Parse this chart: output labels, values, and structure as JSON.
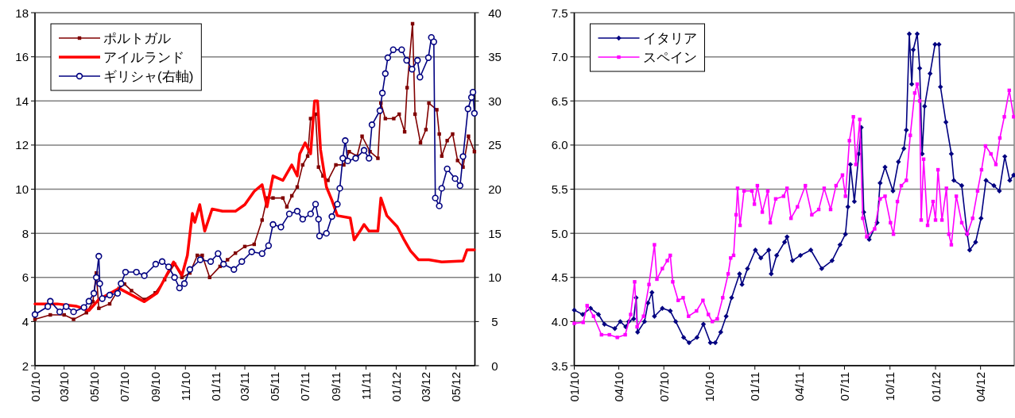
{
  "chart_data": [
    {
      "type": "line",
      "xlim": [
        "2010-01-01",
        "2012-06-08"
      ],
      "ylim": [
        2,
        18
      ],
      "yticks": [
        2,
        4,
        6,
        8,
        10,
        12,
        14,
        16,
        18
      ],
      "y2lim": [
        0,
        40
      ],
      "y2ticks": [
        0,
        5,
        10,
        15,
        20,
        25,
        30,
        35,
        40
      ],
      "xticks": [
        {
          "value": "2010-01-01",
          "label": "01/10"
        },
        {
          "value": "2010-03-01",
          "label": "03/10"
        },
        {
          "value": "2010-05-01",
          "label": "05/10"
        },
        {
          "value": "2010-07-01",
          "label": "07/10"
        },
        {
          "value": "2010-09-01",
          "label": "09/10"
        },
        {
          "value": "2010-11-01",
          "label": "11/10"
        },
        {
          "value": "2011-01-01",
          "label": "01/11"
        },
        {
          "value": "2011-03-01",
          "label": "03/11"
        },
        {
          "value": "2011-05-01",
          "label": "05/11"
        },
        {
          "value": "2011-07-01",
          "label": "07/11"
        },
        {
          "value": "2011-09-01",
          "label": "09/11"
        },
        {
          "value": "2011-11-01",
          "label": "11/11"
        },
        {
          "value": "2012-01-01",
          "label": "01/12"
        },
        {
          "value": "2012-03-01",
          "label": "03/12"
        },
        {
          "value": "2012-05-01",
          "label": "05/12"
        }
      ],
      "grid": "y",
      "legend": "top left",
      "line_style": "solid",
      "series": [
        {
          "name": "ポルトガル",
          "color": "#800000",
          "marker": "square",
          "x": [
            "2010-01-01",
            "2010-02-01",
            "2010-03-01",
            "2010-03-20",
            "2010-04-15",
            "2010-04-28",
            "2010-05-05",
            "2010-05-10",
            "2010-06-01",
            "2010-06-20",
            "2010-07-01",
            "2010-07-15",
            "2010-08-10",
            "2010-09-01",
            "2010-09-20",
            "2010-10-10",
            "2010-10-25",
            "2010-11-10",
            "2010-11-25",
            "2010-12-05",
            "2010-12-20",
            "2011-01-10",
            "2011-01-25",
            "2011-02-10",
            "2011-03-01",
            "2011-03-20",
            "2011-04-05",
            "2011-04-15",
            "2011-04-27",
            "2011-05-17",
            "2011-05-25",
            "2011-06-04",
            "2011-06-15",
            "2011-06-26",
            "2011-07-06",
            "2011-07-12",
            "2011-07-22",
            "2011-07-28",
            "2011-08-06",
            "2011-08-16",
            "2011-09-01",
            "2011-09-17",
            "2011-09-28",
            "2011-10-14",
            "2011-10-24",
            "2011-11-09",
            "2011-11-25",
            "2011-12-01",
            "2011-12-10",
            "2011-12-27",
            "2012-01-07",
            "2012-01-18",
            "2012-01-23",
            "2012-02-03",
            "2012-02-08",
            "2012-02-19",
            "2012-03-01",
            "2012-03-07",
            "2012-03-23",
            "2012-03-28",
            "2012-04-02",
            "2012-04-13",
            "2012-04-24",
            "2012-05-04",
            "2012-05-15",
            "2012-05-26",
            "2012-06-07"
          ],
          "values": [
            4.1,
            4.3,
            4.3,
            4.1,
            4.4,
            4.9,
            6.2,
            4.6,
            4.8,
            5.5,
            5.7,
            5.4,
            5.0,
            5.3,
            5.9,
            6.6,
            6.0,
            6.2,
            7.0,
            7.0,
            6.0,
            6.5,
            6.8,
            7.1,
            7.4,
            7.5,
            8.6,
            9.6,
            9.6,
            9.6,
            9.2,
            9.7,
            10.1,
            11.1,
            11.5,
            13.2,
            13.4,
            11.0,
            10.6,
            10.4,
            11.1,
            11.1,
            11.7,
            11.5,
            12.4,
            11.7,
            11.4,
            13.9,
            13.2,
            13.2,
            13.4,
            12.6,
            14.6,
            17.5,
            13.4,
            12.1,
            12.7,
            13.9,
            13.6,
            12.5,
            11.5,
            12.2,
            12.5,
            11.3,
            11.0,
            12.4,
            11.7
          ]
        },
        {
          "name": "アイルランド",
          "color": "#ff0000",
          "marker": "none",
          "x": [
            "2010-01-01",
            "2010-02-15",
            "2010-03-25",
            "2010-04-20",
            "2010-05-10",
            "2010-06-20",
            "2010-08-10",
            "2010-09-05",
            "2010-10-08",
            "2010-10-25",
            "2010-11-05",
            "2010-11-15",
            "2010-11-20",
            "2010-11-30",
            "2010-12-10",
            "2010-12-25",
            "2011-01-15",
            "2011-02-10",
            "2011-03-01",
            "2011-03-20",
            "2011-04-05",
            "2011-04-15",
            "2011-04-27",
            "2011-05-17",
            "2011-06-04",
            "2011-06-15",
            "2011-06-20",
            "2011-07-01",
            "2011-07-12",
            "2011-07-20",
            "2011-07-26",
            "2011-08-01",
            "2011-08-08",
            "2011-08-13",
            "2011-08-24",
            "2011-09-04",
            "2011-09-30",
            "2011-10-08",
            "2011-10-20",
            "2011-10-28",
            "2011-11-07",
            "2011-11-25",
            "2011-12-01",
            "2011-12-13",
            "2012-01-03",
            "2012-01-17",
            "2012-01-30",
            "2012-02-15",
            "2012-03-07",
            "2012-04-02",
            "2012-05-15",
            "2012-05-23",
            "2012-06-07"
          ],
          "values": [
            4.8,
            4.8,
            4.7,
            4.5,
            5.0,
            5.5,
            4.9,
            5.3,
            6.7,
            6.1,
            7.0,
            8.9,
            8.5,
            9.3,
            8.1,
            9.1,
            9.0,
            9.0,
            9.3,
            9.9,
            10.2,
            9.2,
            10.6,
            10.4,
            11.1,
            10.6,
            11.6,
            12.1,
            11.6,
            14.0,
            14.0,
            11.8,
            10.8,
            10.1,
            9.5,
            8.8,
            8.7,
            7.7,
            8.1,
            8.4,
            8.1,
            8.1,
            9.6,
            8.8,
            8.3,
            7.7,
            7.2,
            6.8,
            6.8,
            6.7,
            6.75,
            7.25,
            7.25
          ]
        },
        {
          "name": "ギリシャ(右軸)",
          "color": "#000080",
          "marker": "circle",
          "axis": "y2",
          "x": [
            "2010-01-01",
            "2010-01-27",
            "2010-02-01",
            "2010-02-20",
            "2010-03-05",
            "2010-03-20",
            "2010-04-10",
            "2010-04-20",
            "2010-04-30",
            "2010-05-05",
            "2010-05-10",
            "2010-05-12",
            "2010-05-17",
            "2010-06-01",
            "2010-06-17",
            "2010-06-24",
            "2010-07-03",
            "2010-07-25",
            "2010-08-10",
            "2010-09-02",
            "2010-09-15",
            "2010-09-28",
            "2010-10-10",
            "2010-10-20",
            "2010-10-30",
            "2010-11-10",
            "2010-12-01",
            "2010-12-22",
            "2011-01-06",
            "2011-01-17",
            "2011-02-07",
            "2011-02-23",
            "2011-03-15",
            "2011-04-05",
            "2011-04-18",
            "2011-04-27",
            "2011-05-13",
            "2011-05-30",
            "2011-06-15",
            "2011-06-26",
            "2011-07-12",
            "2011-07-22",
            "2011-07-28",
            "2011-07-30",
            "2011-08-13",
            "2011-08-24",
            "2011-09-04",
            "2011-09-09",
            "2011-09-15",
            "2011-09-20",
            "2011-09-25",
            "2011-10-11",
            "2011-10-28",
            "2011-11-07",
            "2011-11-13",
            "2011-11-29",
            "2011-12-04",
            "2011-12-10",
            "2011-12-15",
            "2011-12-26",
            "2012-01-12",
            "2012-01-22",
            "2012-02-02",
            "2012-02-13",
            "2012-02-18",
            "2012-03-06",
            "2012-03-12",
            "2012-03-17",
            "2012-03-20",
            "2012-03-28",
            "2012-04-02",
            "2012-04-13",
            "2012-04-29",
            "2012-05-09",
            "2012-05-15",
            "2012-05-25",
            "2012-06-01",
            "2012-06-04",
            "2012-06-07"
          ],
          "values": [
            5.8,
            6.7,
            7.3,
            6.1,
            6.7,
            6.1,
            6.6,
            7.3,
            8.2,
            10.0,
            12.4,
            9.3,
            7.6,
            8.0,
            8.2,
            9.3,
            10.6,
            10.6,
            10.2,
            11.5,
            11.8,
            11.2,
            10.0,
            8.8,
            9.3,
            10.9,
            12.0,
            11.8,
            12.7,
            11.5,
            10.9,
            11.8,
            12.9,
            12.7,
            13.6,
            16.0,
            15.7,
            17.2,
            17.5,
            16.6,
            17.2,
            18.3,
            16.6,
            14.7,
            15.0,
            16.9,
            18.3,
            20.1,
            23.5,
            25.5,
            23.2,
            23.5,
            24.4,
            23.5,
            27.3,
            28.9,
            30.9,
            33.1,
            34.9,
            35.8,
            35.8,
            34.6,
            33.6,
            34.6,
            32.7,
            34.9,
            37.2,
            36.7,
            19.0,
            18.1,
            20.1,
            22.3,
            21.2,
            20.4,
            23.7,
            29.1,
            30.4,
            31.0,
            28.6
          ]
        }
      ]
    },
    {
      "type": "line",
      "xlim": [
        "2010-01-01",
        "2012-06-08"
      ],
      "ylim": [
        3.5,
        7.5
      ],
      "yticks": [
        {
          "value": 3.5,
          "label": "3.5"
        },
        {
          "value": 4,
          "label": "4.0"
        },
        {
          "value": 4.5,
          "label": "4.5"
        },
        {
          "value": 5,
          "label": "5.0"
        },
        {
          "value": 5.5,
          "label": "5.5"
        },
        {
          "value": 6,
          "label": "6.0"
        },
        {
          "value": 6.5,
          "label": "6.5"
        },
        {
          "value": 7,
          "label": "7.0"
        },
        {
          "value": 7.5,
          "label": "7.5"
        }
      ],
      "xticks": [
        {
          "value": "2010-01-01",
          "label": "01/10"
        },
        {
          "value": "2010-04-01",
          "label": "04/10"
        },
        {
          "value": "2010-07-01",
          "label": "07/10"
        },
        {
          "value": "2010-10-01",
          "label": "10/10"
        },
        {
          "value": "2011-01-01",
          "label": "01/11"
        },
        {
          "value": "2011-04-01",
          "label": "04/11"
        },
        {
          "value": "2011-07-01",
          "label": "07/11"
        },
        {
          "value": "2011-10-01",
          "label": "10/11"
        },
        {
          "value": "2012-01-01",
          "label": "01/12"
        },
        {
          "value": "2012-04-01",
          "label": "04/12"
        }
      ],
      "grid": "y",
      "legend": "top left",
      "line_style": "solid",
      "series": [
        {
          "name": "イタリア",
          "color": "#000080",
          "marker": "diamond",
          "x": [
            "2010-01-01",
            "2010-01-18",
            "2010-02-03",
            "2010-02-19",
            "2010-03-03",
            "2010-03-24",
            "2010-04-04",
            "2010-04-15",
            "2010-04-21",
            "2010-05-01",
            "2010-05-06",
            "2010-05-09",
            "2010-05-23",
            "2010-05-30",
            "2010-06-07",
            "2010-06-12",
            "2010-06-28",
            "2010-07-14",
            "2010-07-25",
            "2010-08-10",
            "2010-08-21",
            "2010-09-06",
            "2010-09-19",
            "2010-10-03",
            "2010-10-13",
            "2010-10-24",
            "2010-11-04",
            "2010-11-15",
            "2010-12-01",
            "2010-12-06",
            "2010-12-17",
            "2011-01-02",
            "2011-01-13",
            "2011-01-29",
            "2011-02-03",
            "2011-02-14",
            "2011-03-02",
            "2011-03-07",
            "2011-03-18",
            "2011-04-03",
            "2011-04-24",
            "2011-05-16",
            "2011-06-06",
            "2011-06-22",
            "2011-07-03",
            "2011-07-08",
            "2011-07-13",
            "2011-07-21",
            "2011-07-30",
            "2011-08-04",
            "2011-08-09",
            "2011-08-20",
            "2011-09-05",
            "2011-09-11",
            "2011-09-21",
            "2011-10-07",
            "2011-10-18",
            "2011-10-29",
            "2011-11-03",
            "2011-11-09",
            "2011-11-14",
            "2011-11-17",
            "2011-11-25",
            "2011-11-30",
            "2011-12-05",
            "2011-12-10",
            "2011-12-21",
            "2011-12-31",
            "2012-01-08",
            "2012-01-11",
            "2012-01-22",
            "2012-02-02",
            "2012-02-07",
            "2012-02-23",
            "2012-03-05",
            "2012-03-10",
            "2012-03-22",
            "2012-04-02",
            "2012-04-12",
            "2012-04-28",
            "2012-05-09",
            "2012-05-20",
            "2012-05-30",
            "2012-06-07"
          ],
          "values": [
            4.13,
            4.08,
            4.15,
            4.08,
            3.97,
            3.92,
            4.0,
            3.94,
            4.0,
            4.03,
            4.27,
            3.88,
            4.0,
            4.21,
            4.33,
            4.06,
            4.15,
            4.12,
            4.0,
            3.82,
            3.76,
            3.82,
            3.97,
            3.76,
            3.76,
            3.88,
            4.06,
            4.27,
            4.54,
            4.42,
            4.6,
            4.81,
            4.72,
            4.81,
            4.54,
            4.75,
            4.9,
            4.96,
            4.69,
            4.75,
            4.81,
            4.6,
            4.69,
            4.87,
            4.99,
            5.3,
            5.78,
            5.36,
            5.9,
            6.2,
            5.24,
            4.93,
            5.12,
            5.57,
            5.75,
            5.48,
            5.81,
            5.96,
            6.17,
            7.26,
            6.69,
            7.08,
            7.26,
            6.87,
            5.9,
            6.44,
            6.81,
            7.14,
            7.14,
            6.66,
            6.26,
            5.9,
            5.6,
            5.54,
            4.99,
            4.81,
            4.9,
            5.17,
            5.6,
            5.54,
            5.48,
            5.87,
            5.6,
            5.66
          ]
        },
        {
          "name": "スペイン",
          "color": "#ff00ff",
          "marker": "square",
          "x": [
            "2010-01-01",
            "2010-01-19",
            "2010-01-27",
            "2010-02-09",
            "2010-02-25",
            "2010-03-13",
            "2010-03-29",
            "2010-04-14",
            "2010-04-25",
            "2010-05-03",
            "2010-05-08",
            "2010-05-21",
            "2010-06-01",
            "2010-06-12",
            "2010-06-17",
            "2010-06-28",
            "2010-07-08",
            "2010-07-14",
            "2010-07-19",
            "2010-07-30",
            "2010-08-09",
            "2010-08-20",
            "2010-09-05",
            "2010-09-18",
            "2010-09-29",
            "2010-10-07",
            "2010-10-17",
            "2010-10-28",
            "2010-11-08",
            "2010-11-13",
            "2010-11-19",
            "2010-11-24",
            "2010-11-27",
            "2010-12-02",
            "2010-12-10",
            "2010-12-26",
            "2010-12-31",
            "2011-01-06",
            "2011-01-16",
            "2011-01-27",
            "2011-02-01",
            "2011-02-12",
            "2011-02-28",
            "2011-03-07",
            "2011-03-15",
            "2011-03-28",
            "2011-04-13",
            "2011-04-26",
            "2011-05-10",
            "2011-05-21",
            "2011-06-03",
            "2011-06-14",
            "2011-06-27",
            "2011-07-03",
            "2011-07-11",
            "2011-07-19",
            "2011-07-24",
            "2011-08-01",
            "2011-08-07",
            "2011-08-15",
            "2011-08-31",
            "2011-09-11",
            "2011-09-21",
            "2011-10-02",
            "2011-10-08",
            "2011-10-16",
            "2011-10-24",
            "2011-11-03",
            "2011-11-11",
            "2011-11-20",
            "2011-11-25",
            "2011-11-30",
            "2011-12-03",
            "2011-12-08",
            "2011-12-16",
            "2011-12-27",
            "2012-01-01",
            "2012-01-06",
            "2012-01-14",
            "2012-01-23",
            "2012-01-28",
            "2012-02-02",
            "2012-02-12",
            "2012-02-23",
            "2012-03-05",
            "2012-03-16",
            "2012-03-26",
            "2012-04-03",
            "2012-04-11",
            "2012-04-22",
            "2012-05-02",
            "2012-05-10",
            "2012-05-19",
            "2012-05-29",
            "2012-06-07"
          ],
          "values": [
            3.98,
            3.99,
            4.18,
            4.06,
            3.85,
            3.85,
            3.82,
            3.85,
            4.08,
            4.45,
            3.94,
            4.06,
            4.42,
            4.87,
            4.48,
            4.6,
            4.69,
            4.75,
            4.45,
            4.24,
            4.27,
            4.06,
            4.12,
            4.24,
            4.08,
            4.0,
            4.03,
            4.27,
            4.54,
            4.72,
            4.75,
            5.21,
            5.51,
            5.09,
            5.48,
            5.48,
            5.33,
            5.54,
            5.24,
            5.48,
            5.12,
            5.39,
            5.42,
            5.51,
            5.17,
            5.3,
            5.54,
            5.21,
            5.27,
            5.51,
            5.27,
            5.54,
            5.66,
            5.42,
            6.05,
            6.32,
            5.78,
            6.29,
            5.17,
            4.96,
            5.05,
            5.39,
            5.42,
            5.12,
            4.99,
            5.36,
            5.54,
            5.6,
            6.11,
            6.59,
            6.69,
            6.5,
            5.15,
            5.84,
            5.09,
            5.36,
            5.15,
            5.72,
            5.15,
            5.51,
            4.99,
            4.87,
            5.42,
            5.12,
            4.99,
            5.17,
            5.48,
            5.72,
            5.99,
            5.9,
            5.78,
            6.08,
            6.32,
            6.62,
            6.32
          ]
        }
      ]
    }
  ]
}
